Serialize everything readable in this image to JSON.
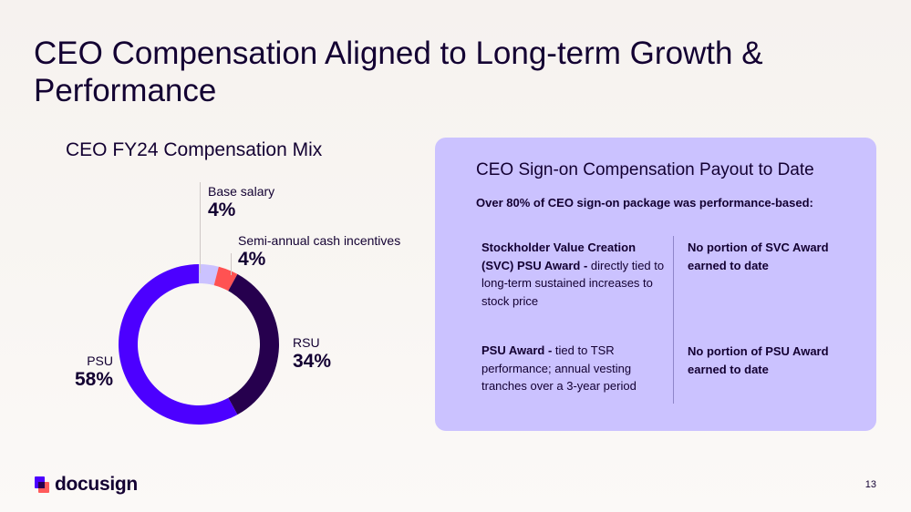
{
  "title": "CEO Compensation Aligned to Long-term Growth & Performance",
  "chart_data": {
    "type": "pie",
    "subtype": "donut",
    "title": "CEO FY24 Compensation Mix",
    "categories": [
      "Base salary",
      "Semi-annual cash incentives",
      "RSU",
      "PSU"
    ],
    "values": [
      4,
      4,
      34,
      58
    ],
    "labels": [
      "4%",
      "4%",
      "34%",
      "58%"
    ],
    "colors": [
      "#cbc2ff",
      "#ff5252",
      "#26004e",
      "#4c00ff"
    ]
  },
  "panel": {
    "title": "CEO Sign-on Compensation Payout to Date",
    "subtitle": "Over 80% of CEO sign-on package was performance-based:",
    "rows": [
      {
        "award_bold": "Stockholder Value Creation (SVC) PSU Award -",
        "award_text": " directly tied to long-term sustained increases to stock price",
        "status": "No portion of SVC Award earned to date"
      },
      {
        "award_bold": "PSU Award -",
        "award_text": " tied to TSR performance; annual vesting tranches over a 3-year period",
        "status": "No portion of PSU Award earned to date"
      }
    ]
  },
  "footer": {
    "logo_text": "docusign",
    "page_number": "13"
  }
}
